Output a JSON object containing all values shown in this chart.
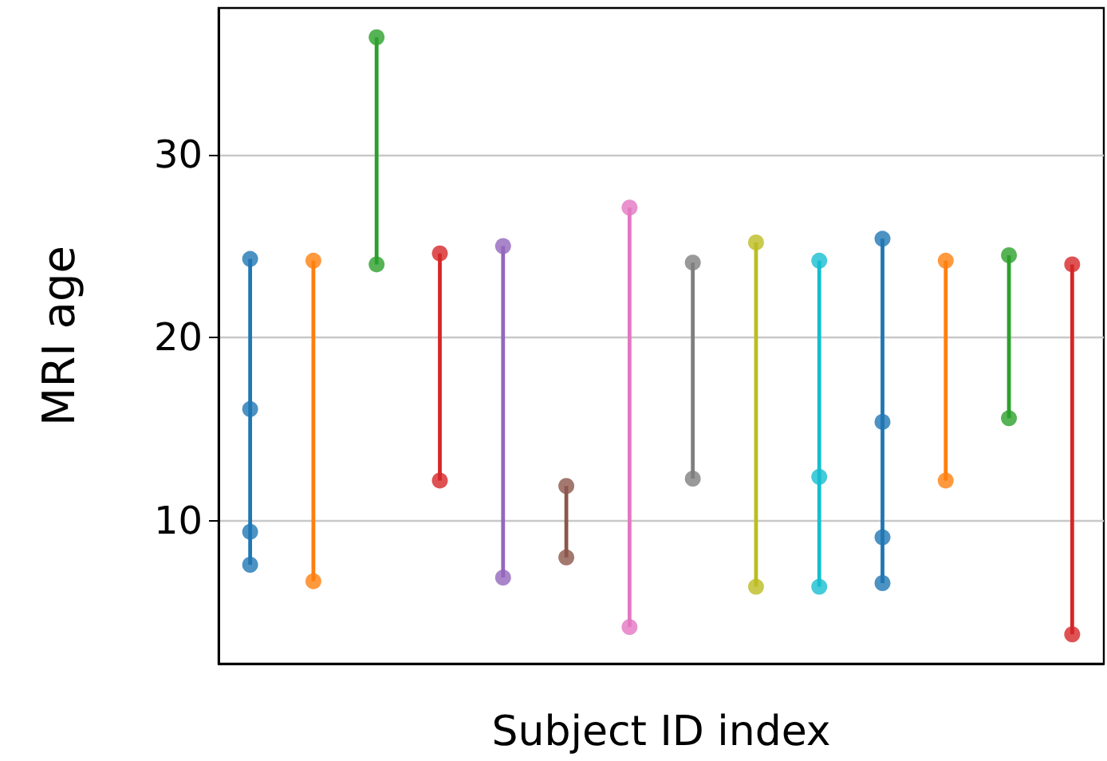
{
  "chart_data": {
    "type": "bar",
    "xlabel": "Subject ID index",
    "ylabel": "MRI age",
    "categories": [
      null,
      null,
      null,
      null,
      null,
      null,
      null,
      null,
      null,
      null,
      null,
      null,
      null,
      null
    ],
    "ylim": [
      2.2,
      38.0
    ],
    "yticks": [
      10,
      20,
      30
    ],
    "tick_labels": "y",
    "grid": "y",
    "marker": "circle",
    "series": [
      {
        "base": [
          7.6,
          6.7,
          24.0,
          12.2,
          6.9,
          8.0,
          4.2,
          12.3,
          6.4,
          6.4,
          6.6,
          12.2,
          15.6,
          3.8
        ],
        "values": [
          16.7,
          17.5,
          12.4,
          12.4,
          18.1,
          3.9,
          22.9,
          11.8,
          18.8,
          17.8,
          18.8,
          12.0,
          8.9,
          20.2
        ],
        "colors": [
          "#1f77b4",
          "#ff7f0e",
          "#2ca02c",
          "#d62728",
          "#9467bd",
          "#8c564b",
          "#e377c2",
          "#7f7f7f",
          "#bcbd22",
          "#17becf",
          "#1f77b4",
          "#ff7f0e",
          "#2ca02c",
          "#d62728"
        ]
      },
      {
        "type": "scatter",
        "values": [
          24.3,
          24.2,
          36.4,
          24.6,
          25.0,
          11.9,
          27.1,
          24.1,
          25.2,
          24.2,
          25.4,
          24.2,
          24.5,
          24.0
        ],
        "colors": [
          "#1f77b4",
          "#ff7f0e",
          "#2ca02c",
          "#d62728",
          "#9467bd",
          "#8c564b",
          "#e377c2",
          "#7f7f7f",
          "#bcbd22",
          "#17becf",
          "#1f77b4",
          "#ff7f0e",
          "#2ca02c",
          "#d62728"
        ]
      },
      {
        "type": "scatter",
        "values": [
          16.1,
          null,
          null,
          null,
          null,
          null,
          null,
          null,
          null,
          12.4,
          15.4,
          null,
          null,
          null
        ],
        "colors": [
          "#1f77b4",
          null,
          null,
          null,
          null,
          null,
          null,
          null,
          null,
          "#17becf",
          "#1f77b4",
          null,
          null,
          null
        ]
      },
      {
        "type": "scatter",
        "values": [
          9.4,
          null,
          null,
          null,
          null,
          null,
          null,
          null,
          null,
          null,
          9.1,
          null,
          null,
          null
        ],
        "colors": [
          "#1f77b4",
          null,
          null,
          null,
          null,
          null,
          null,
          null,
          null,
          null,
          "#1f77b4",
          null,
          null,
          null
        ]
      },
      {
        "type": "scatter",
        "values": [
          7.6,
          6.7,
          24.0,
          12.2,
          6.9,
          8.0,
          4.2,
          12.3,
          6.4,
          6.4,
          6.6,
          12.2,
          15.6,
          3.8
        ],
        "colors": [
          "#1f77b4",
          "#ff7f0e",
          "#2ca02c",
          "#d62728",
          "#9467bd",
          "#8c564b",
          "#e377c2",
          "#7f7f7f",
          "#bcbd22",
          "#17becf",
          "#1f77b4",
          "#ff7f0e",
          "#2ca02c",
          "#d62728"
        ]
      }
    ]
  }
}
